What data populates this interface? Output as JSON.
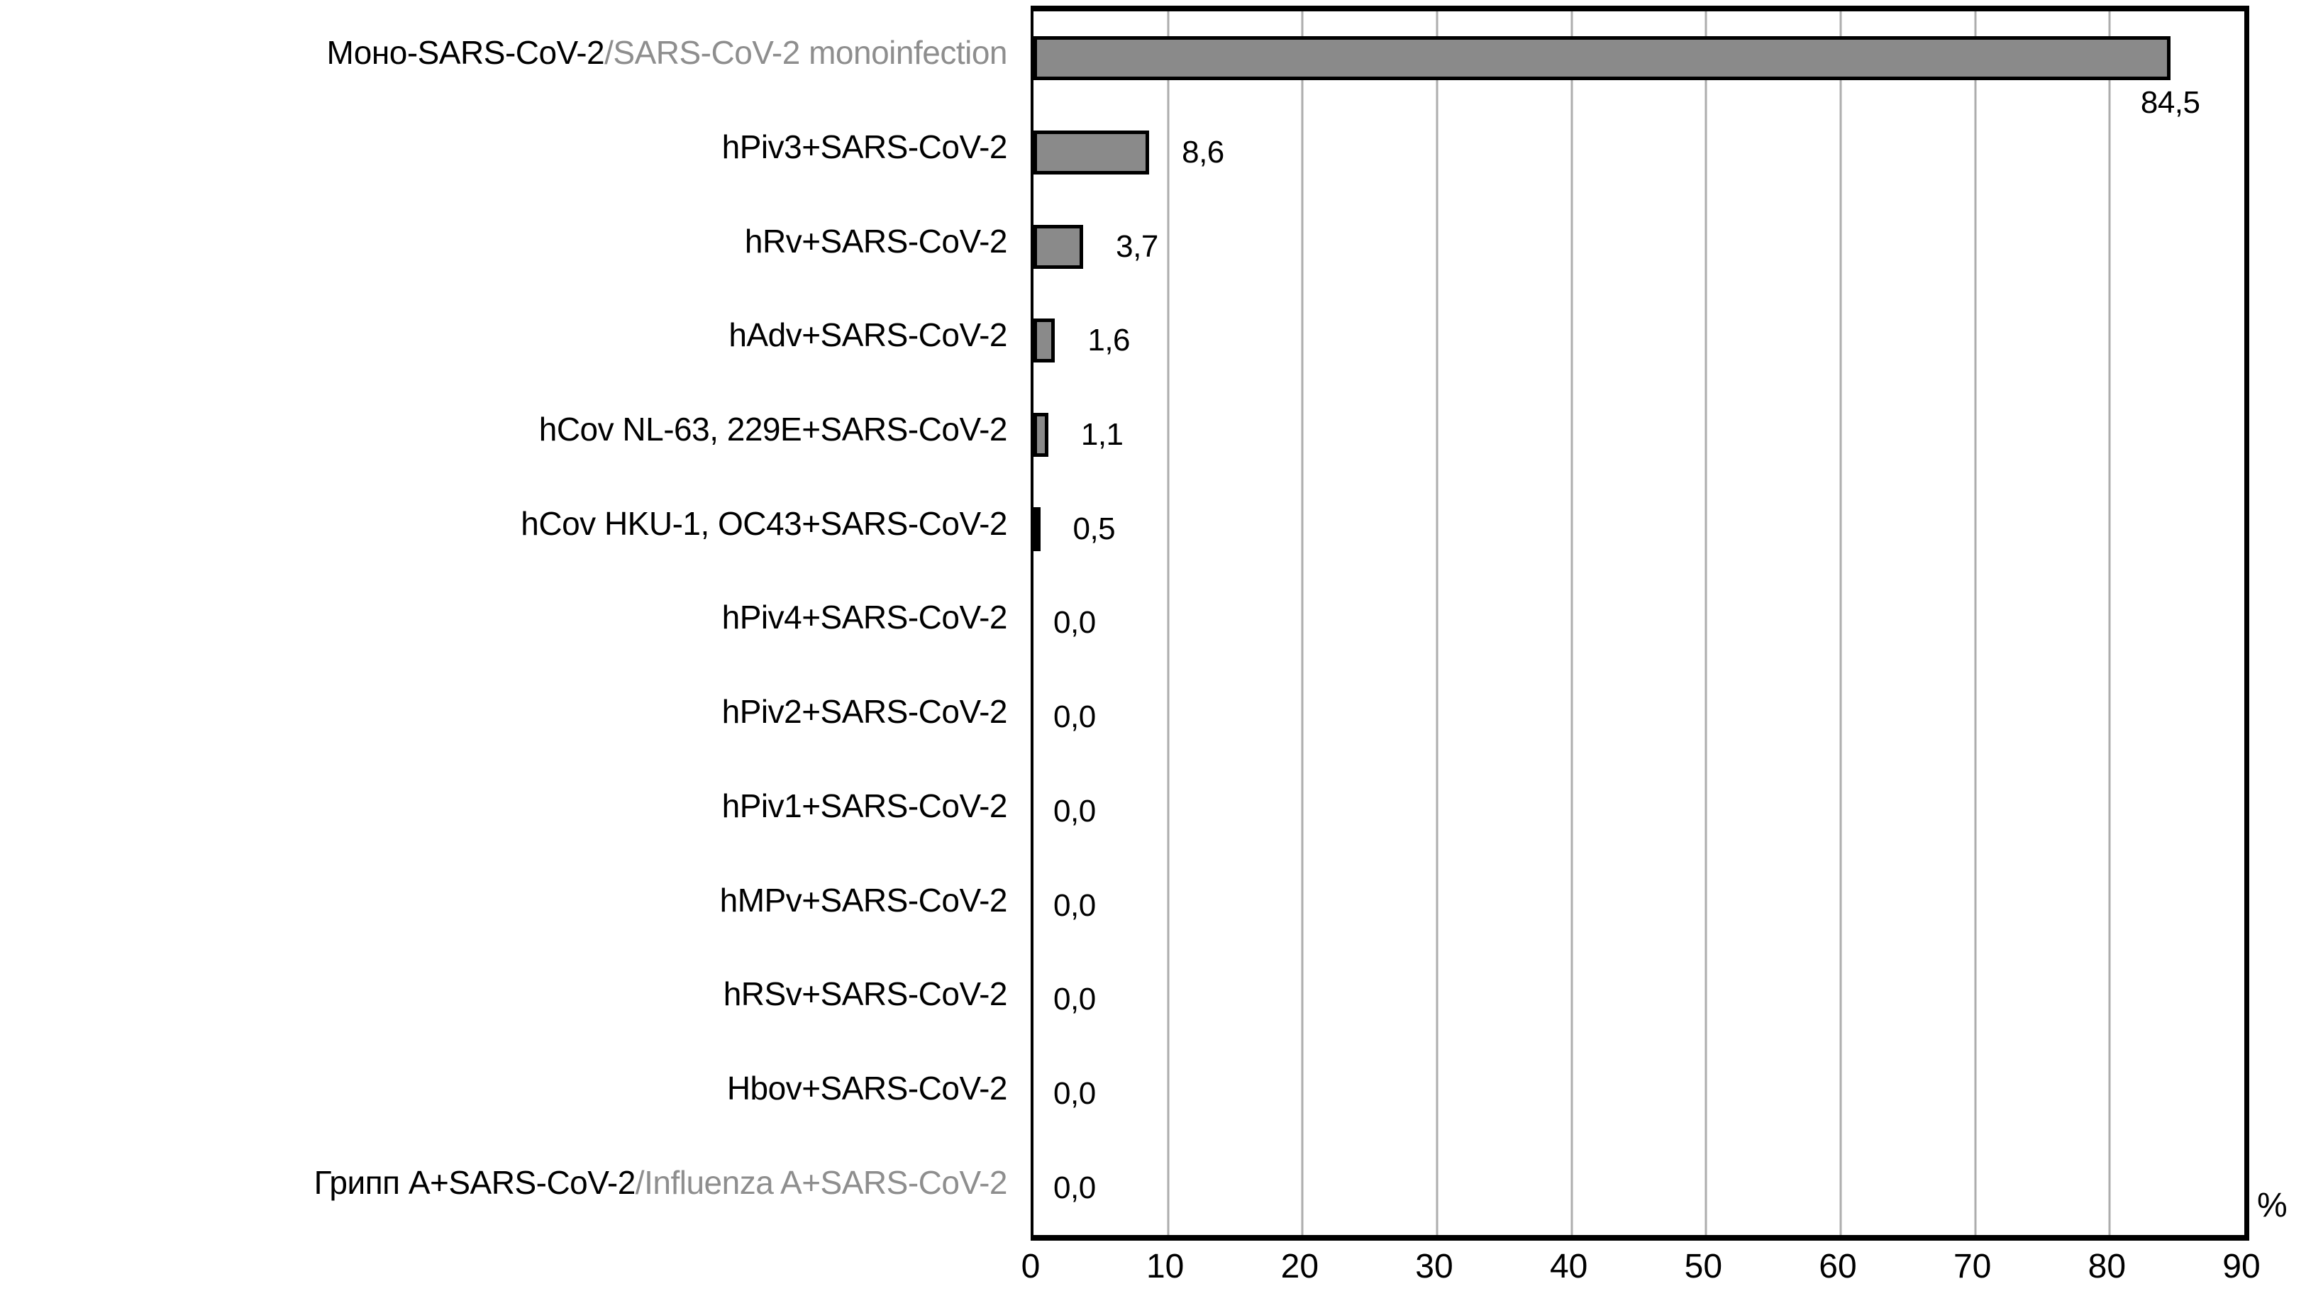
{
  "chart_data": {
    "type": "bar",
    "orientation": "horizontal",
    "title": "",
    "xlabel": "%",
    "ylabel": "",
    "xlim": [
      0,
      90
    ],
    "xticks": [
      0,
      10,
      20,
      30,
      40,
      50,
      60,
      70,
      80,
      90
    ],
    "grid": "vertical",
    "legend": "none",
    "categories": [
      {
        "primary": "Моно-SARS-CoV-2",
        "secondary": "/SARS-CoV-2 monoinfection"
      },
      {
        "primary": "hPiv3+SARS-CoV-2",
        "secondary": ""
      },
      {
        "primary": "hRv+SARS-CoV-2",
        "secondary": ""
      },
      {
        "primary": "hAdv+SARS-CoV-2",
        "secondary": ""
      },
      {
        "primary": "hCov NL-63, 229E+SARS-CoV-2",
        "secondary": ""
      },
      {
        "primary": "hCov HKU-1, OC43+SARS-CoV-2",
        "secondary": ""
      },
      {
        "primary": "hPiv4+SARS-CoV-2",
        "secondary": ""
      },
      {
        "primary": "hPiv2+SARS-CoV-2",
        "secondary": ""
      },
      {
        "primary": "hPiv1+SARS-CoV-2",
        "secondary": ""
      },
      {
        "primary": "hMPv+SARS-CoV-2",
        "secondary": ""
      },
      {
        "primary": "hRSv+SARS-CoV-2",
        "secondary": ""
      },
      {
        "primary": "Hbov+SARS-CoV-2",
        "secondary": ""
      },
      {
        "primary": "Грипп А+SARS-CoV-2",
        "secondary": "/Influenza A+SARS-CoV-2"
      }
    ],
    "values": [
      84.5,
      8.6,
      3.7,
      1.6,
      1.1,
      0.5,
      0.0,
      0.0,
      0.0,
      0.0,
      0.0,
      0.0,
      0.0
    ],
    "value_labels": [
      "84,5",
      "8,6",
      "3,7",
      "1,6",
      "1,1",
      "0,5",
      "0,0",
      "0,0",
      "0,0",
      "0,0",
      "0,0",
      "0,0",
      "0,0"
    ]
  },
  "colors": {
    "bar_fill": "#8a8a8a",
    "bar_border": "#000000",
    "gridline": "#adadad",
    "plot_border": "#000000",
    "text_primary": "#000000",
    "text_secondary": "#8e8e8e",
    "background": "#ffffff"
  }
}
